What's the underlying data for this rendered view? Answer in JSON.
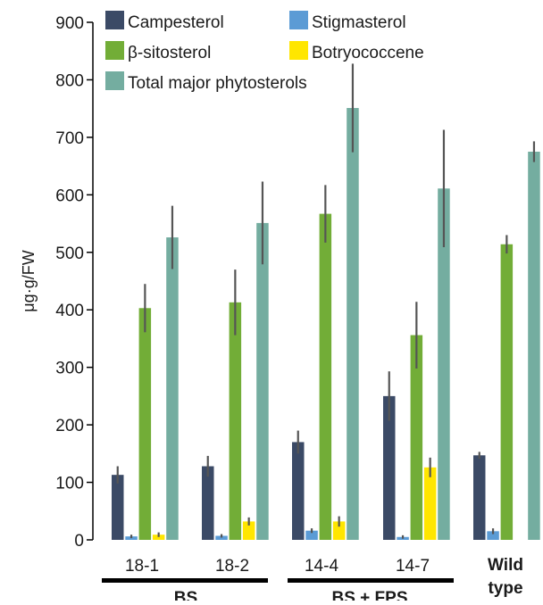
{
  "chart_data": {
    "type": "bar",
    "ylabel": "μg·g/FW",
    "ylim": [
      0,
      900
    ],
    "yticks": [
      0,
      100,
      200,
      300,
      400,
      500,
      600,
      700,
      800,
      900
    ],
    "categories": [
      "18-1",
      "18-2",
      "14-4",
      "14-7",
      "Wild type"
    ],
    "category_groups": [
      {
        "label": "BS",
        "categories": [
          "18-1",
          "18-2"
        ]
      },
      {
        "label": "BS + FPS",
        "categories": [
          "14-4",
          "14-7"
        ]
      }
    ],
    "wild_type_label": [
      "Wild",
      "type"
    ],
    "series": [
      {
        "name": "Campesterol",
        "color": "#3b4a66",
        "values": [
          113,
          128,
          170,
          250,
          147
        ],
        "errors": [
          15,
          18,
          20,
          43,
          6
        ]
      },
      {
        "name": "Stigmasterol",
        "color": "#5b9bd5",
        "values": [
          6,
          7,
          16,
          5,
          15
        ],
        "errors": [
          3,
          3,
          4,
          3,
          5
        ]
      },
      {
        "name": "β-sitosterol",
        "color": "#72ad37",
        "values": [
          403,
          413,
          567,
          356,
          514
        ],
        "errors": [
          42,
          57,
          50,
          58,
          16
        ]
      },
      {
        "name": "Botryococcene",
        "color": "#ffe600",
        "values": [
          9,
          32,
          32,
          126,
          null
        ],
        "errors": [
          4,
          7,
          9,
          17,
          null
        ]
      },
      {
        "name": "Total major phytosterols",
        "color": "#74ada0",
        "values": [
          526,
          551,
          751,
          611,
          675
        ],
        "errors": [
          55,
          72,
          77,
          102,
          18
        ]
      }
    ],
    "legend_placement": "top-left",
    "grid": false
  }
}
